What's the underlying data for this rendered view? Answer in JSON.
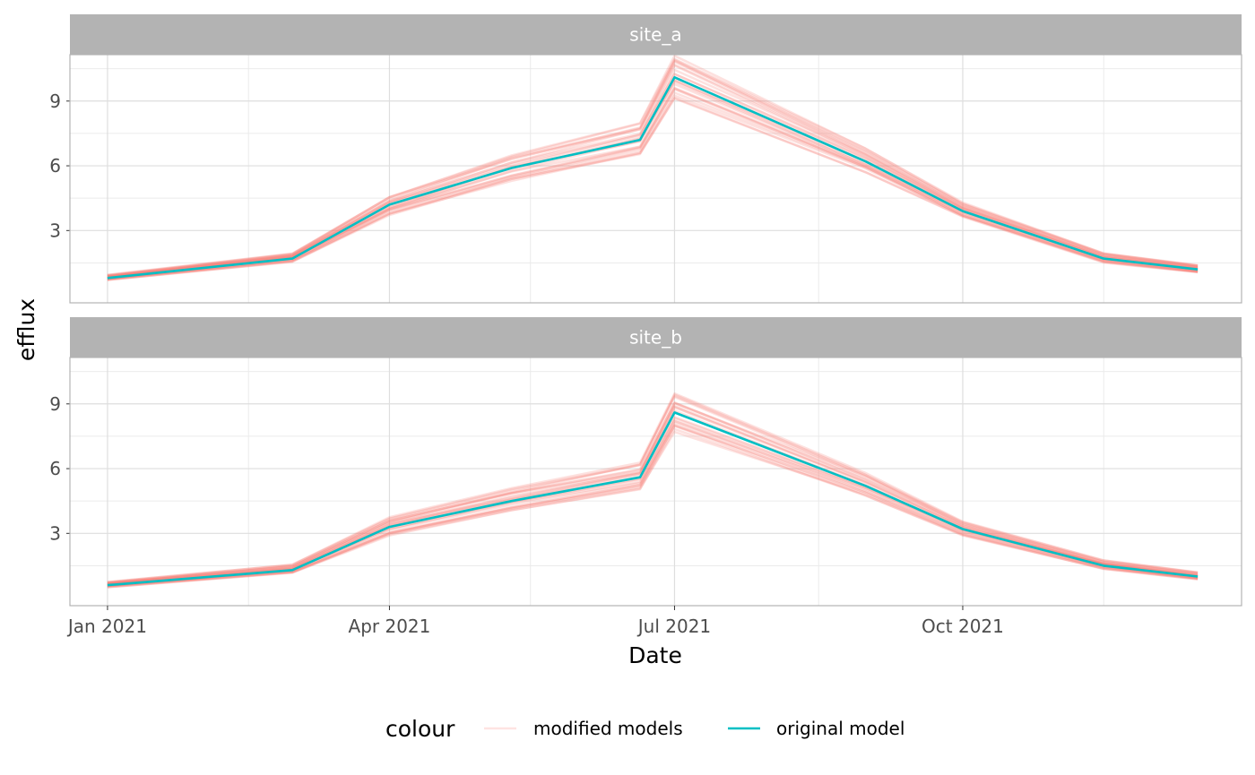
{
  "chart_data": {
    "type": "line",
    "xlabel": "Date",
    "ylabel": "efflux",
    "x_ticks": [
      "2021-01-01",
      "2021-04-01",
      "2021-07-01",
      "2021-10-01"
    ],
    "x_tick_labels": [
      "Jan 2021",
      "Apr 2021",
      "Jul 2021",
      "Oct 2021"
    ],
    "xlim": [
      "2020-12-20",
      "2021-12-29"
    ],
    "x_minor_ticks": [
      "2021-02-15",
      "2021-05-16",
      "2021-08-16",
      "2021-11-15"
    ],
    "y_ticks": [
      3,
      6,
      9
    ],
    "ylim": [
      -0.35,
      11.15
    ],
    "x": [
      "2021-01-01",
      "2021-03-01",
      "2021-04-01",
      "2021-05-10",
      "2021-06-20",
      "2021-07-01",
      "2021-08-31",
      "2021-10-01",
      "2021-11-15",
      "2021-12-15"
    ],
    "panels": [
      {
        "label": "site_a",
        "series": [
          {
            "name": "original model",
            "values": [
              0.8,
              1.7,
              4.2,
              5.9,
              7.2,
              10.1,
              6.2,
              3.9,
              1.7,
              1.2
            ]
          },
          {
            "name": "modified models",
            "range_low": [
              0.7,
              1.55,
              3.7,
              5.3,
              6.5,
              9.1,
              5.7,
              3.6,
              1.5,
              1.05
            ],
            "range_high": [
              0.95,
              1.95,
              4.6,
              6.5,
              8.0,
              11.1,
              6.8,
              4.3,
              1.95,
              1.4
            ]
          }
        ]
      },
      {
        "label": "site_b",
        "series": [
          {
            "name": "original model",
            "values": [
              0.6,
              1.3,
              3.3,
              4.5,
              5.6,
              8.6,
              5.2,
              3.2,
              1.5,
              1.0
            ]
          },
          {
            "name": "modified models",
            "range_low": [
              0.5,
              1.15,
              2.9,
              4.0,
              5.0,
              7.7,
              4.7,
              2.9,
              1.35,
              0.85
            ],
            "range_high": [
              0.75,
              1.55,
              3.75,
              5.1,
              6.3,
              9.5,
              5.8,
              3.55,
              1.75,
              1.2
            ]
          }
        ]
      }
    ],
    "legend": {
      "title": "colour",
      "position": "bottom",
      "entries": [
        {
          "label": "modified models",
          "color": "#F8766D"
        },
        {
          "label": "original model",
          "color": "#00BFC4"
        }
      ]
    },
    "grid": true
  }
}
